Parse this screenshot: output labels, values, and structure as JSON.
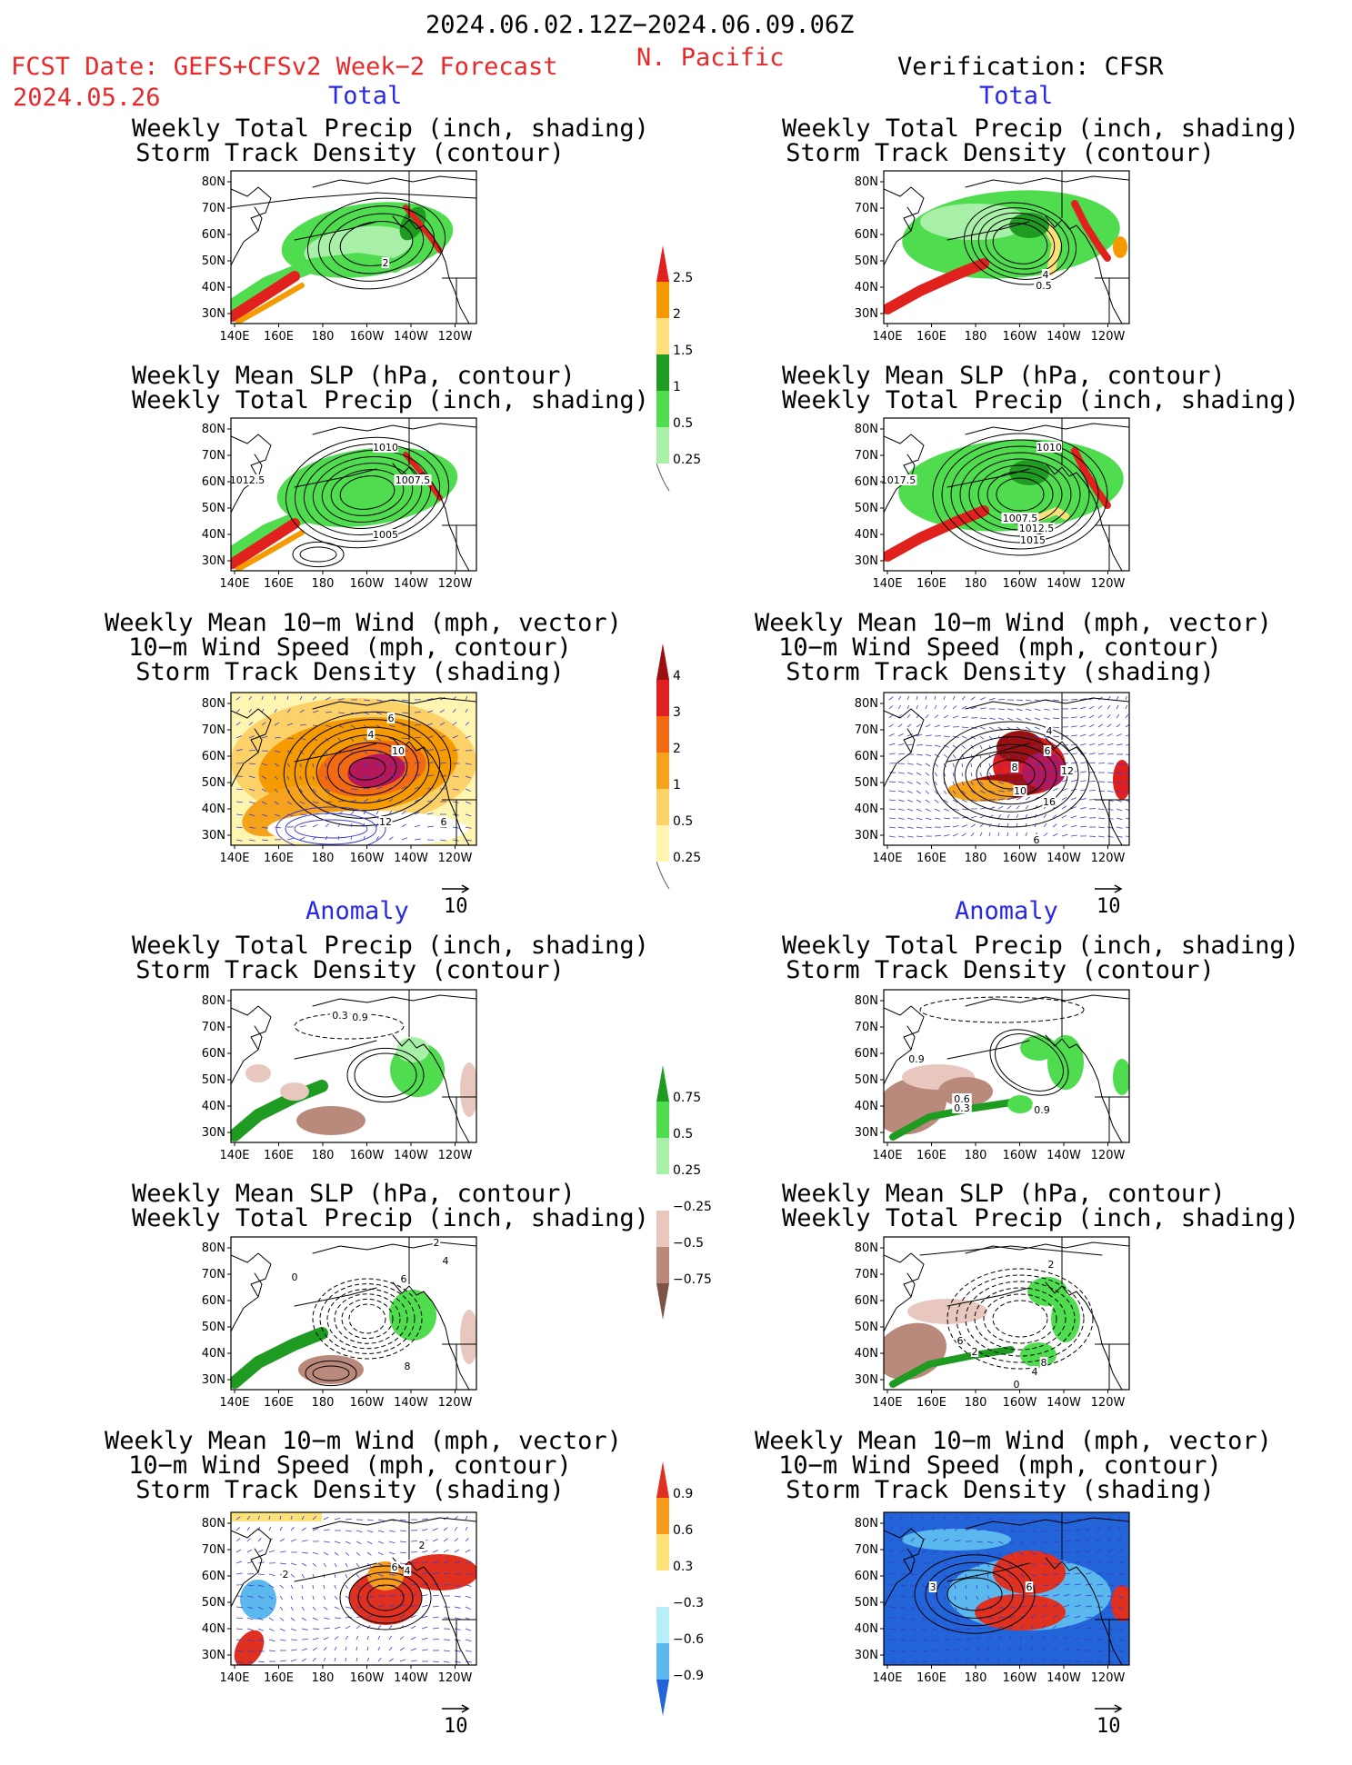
{
  "header": {
    "date_range": "2024.06.02.12Z−2024.06.09.06Z",
    "fcst_label": "FCST Date: GEFS+CFSv2 Week−2 Forecast",
    "fcst_date": "2024.05.26",
    "region": "N. Pacific",
    "verification": "Verification: CFSR"
  },
  "sections": {
    "total": "Total",
    "anomaly": "Anomaly"
  },
  "titles": {
    "precip_storm": [
      "Weekly Total Precip (inch, shading)",
      "Storm Track Density (contour)"
    ],
    "slp_precip": [
      "Weekly Mean SLP (hPa, contour)",
      "Weekly Total Precip (inch, shading)"
    ],
    "wind_storm": [
      "Weekly Mean 10−m Wind (mph, vector)",
      "10−m Wind Speed (mph, contour)",
      "Storm Track Density (shading)"
    ]
  },
  "axes": {
    "lat_ticks": [
      "80N",
      "70N",
      "60N",
      "50N",
      "40N",
      "30N"
    ],
    "lon_ticks": [
      "140E",
      "160E",
      "180",
      "160W",
      "140W",
      "120W"
    ]
  },
  "vector_ref": "10",
  "contour_labels": {
    "fc_total_precip": [
      "2"
    ],
    "fc_total_slp": [
      "1010",
      "1012.5",
      "1007.5",
      "1005"
    ],
    "fc_total_wind": [
      "6",
      "4",
      "10",
      "12",
      "6"
    ],
    "an_total_precip": [
      "4",
      "0.5"
    ],
    "an_total_slp": [
      "1010",
      "1017.5",
      "1007.5",
      "1012.5",
      "1015"
    ],
    "an_total_wind": [
      "4",
      "6",
      "8",
      "12",
      "10",
      "16",
      "6"
    ],
    "fc_anom_precip": [
      "0.3",
      "0.9"
    ],
    "fc_anom_slp": [
      "2",
      "0",
      "4",
      "6",
      "8"
    ],
    "fc_anom_wind": [
      "2",
      "6",
      "4",
      "2"
    ],
    "an_anom_precip": [
      "0.9",
      "0.6",
      "0.3",
      "0.9"
    ],
    "an_anom_slp": [
      "2",
      "6",
      "2",
      "8",
      "4",
      "0"
    ],
    "an_anom_wind": [
      "3",
      "6"
    ]
  },
  "colorbars": {
    "precip_total": {
      "labels": [
        "2.5",
        "2",
        "1.5",
        "1",
        "0.5",
        "0.25"
      ],
      "colors": [
        "#e0211d",
        "#f59a00",
        "#fde07a",
        "#1f9b22",
        "#4fdc4f",
        "#a8f0a8"
      ]
    },
    "storm_total": {
      "labels": [
        "4",
        "3",
        "2",
        "1",
        "0.5",
        "0.25"
      ],
      "colors": [
        "#9b0f0f",
        "#e02020",
        "#f26a12",
        "#f5a21c",
        "#fcd168",
        "#fdf5b0"
      ]
    },
    "precip_anom": {
      "labels": [
        "0.75",
        "0.5",
        "0.25",
        "−0.25",
        "−0.5",
        "−0.75"
      ],
      "colors": [
        "#1f9b22",
        "#4fdc4f",
        "#a8f0a8",
        "#ffffff",
        "#e8c8be",
        "#b98a7c",
        "#7d5346"
      ]
    },
    "storm_anom": {
      "labels": [
        "0.9",
        "0.6",
        "0.3",
        "−0.3",
        "−0.6",
        "−0.9"
      ],
      "colors": [
        "#e0301f",
        "#f79b1c",
        "#fde27a",
        "#ffffff",
        "#b8eef8",
        "#5ab8ee",
        "#2364d8"
      ]
    }
  },
  "colors": {
    "green": "#4fdc4f",
    "dgreen": "#1f9b22",
    "lgreen": "#a8f0a8",
    "red": "#e0211d",
    "orange": "#f59a00",
    "yellow": "#fde07a",
    "brown": "#b98a7c",
    "lbrown": "#e8c8be",
    "blue": "#2364d8",
    "lblue": "#5ab8ee",
    "vector": "#3a3acc"
  }
}
